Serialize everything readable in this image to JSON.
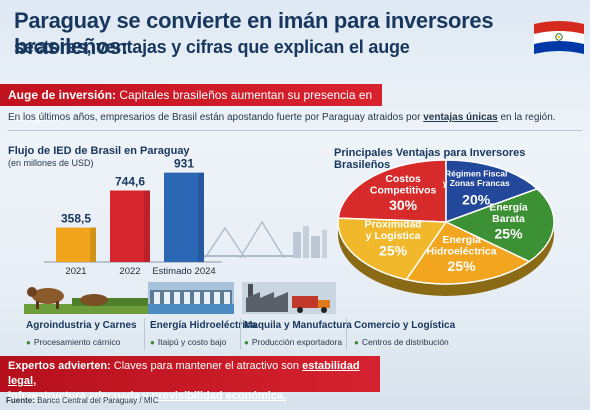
{
  "header": {
    "title_line1": "Paraguay se convierte en imán para inversores brasileños:",
    "title_line2": "sectores, ventajas y cifras que explican el auge"
  },
  "banner": {
    "label": "Auge de inversión:",
    "text": "Capitales brasileños aumentan su presencia en Paraguay"
  },
  "intro": {
    "before": "En los últimos años, empresarios de Brasil están apostando fuerte por Paraguay atraidos por",
    "highlight": "ventajas únicas",
    "after": "en la región."
  },
  "chart_data": [
    {
      "type": "bar",
      "title": "Flujo de IED de Brasil en Paraguay",
      "subtitle": "(en millones de USD)",
      "categories": [
        "2021",
        "2022",
        "Estimado 2024"
      ],
      "values": [
        358.5,
        744.6,
        931
      ],
      "value_labels": [
        "358,5",
        "744,6",
        "931"
      ],
      "colors": [
        "#f0a51d",
        "#d7262e",
        "#2c67b6"
      ],
      "ylim": [
        0,
        1000
      ],
      "grid": false
    },
    {
      "type": "pie",
      "title": "Principales Ventajas para Inversores Brasileños",
      "slices": [
        {
          "label_lines": [
            "Costos",
            "Competitivos"
          ],
          "value": 30,
          "value_label": "30%",
          "color": "#d72a2a"
        },
        {
          "label_lines": [
            "Régimen Fiscal",
            "y Zonas Francas"
          ],
          "value": 20,
          "value_label": "20%",
          "color": "#23479a"
        },
        {
          "label_lines": [
            "Energía",
            "Barata"
          ],
          "value": 25,
          "value_label": "25%",
          "color": "#3d9135"
        },
        {
          "label_lines": [
            "Energía",
            "Hidroeléctrica"
          ],
          "value": 25,
          "value_label": "25%",
          "color": "#f2a51e"
        },
        {
          "label_lines": [
            "Proximidad",
            "y Logística"
          ],
          "value": 25,
          "value_label": "25%",
          "color": "#f0b82a"
        }
      ]
    }
  ],
  "sectors": [
    {
      "name": "Agroindustria y Carnes",
      "sub": "Procesamiento cárnico",
      "icon": "cow-icon"
    },
    {
      "name": "Energía Hidroeléctrica",
      "sub": "Itaipú y costo bajo",
      "icon": "dam-icon"
    },
    {
      "name": "Maquila y Manufactura",
      "sub": "Producción exportadora",
      "icon": "factory-icon"
    },
    {
      "name": "Comercio y Logística",
      "sub": "Centros de distribución",
      "icon": ""
    }
  ],
  "experts": {
    "label": "Expertos advierten:",
    "text1": "Claves para mantener el atractivo son",
    "highlight1": "estabilidad legal,",
    "highlight2": "infraestructura adecuada y previsibilidad económica."
  },
  "source": {
    "label": "Fuente:",
    "text": "Banco Central del Paraguay / MIC"
  },
  "colors": {
    "navy": "#17375e",
    "red": "#c1121f",
    "green": "#3a8c34"
  }
}
